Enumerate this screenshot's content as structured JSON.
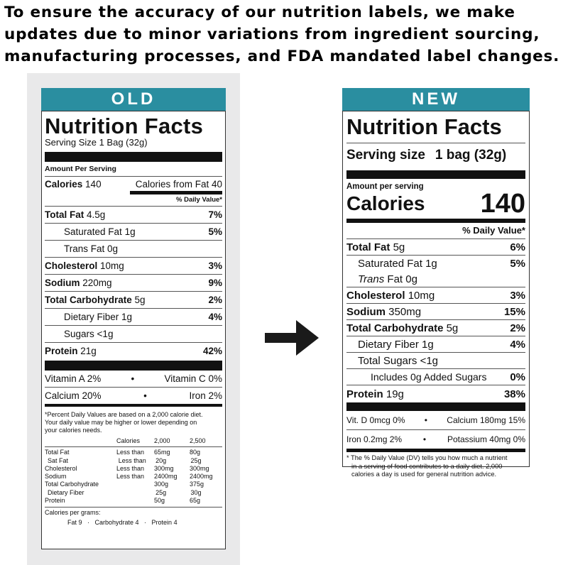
{
  "header": {
    "line1": "To ensure the accuracy of our nutrition labels, we make",
    "line2": "updates due to minor variations from ingredient sourcing,",
    "line3": "manufacturing processes, and FDA mandated label changes."
  },
  "old": {
    "banner": "OLD",
    "title": "Nutrition Facts",
    "serving": "Serving Size 1 Bag (32g)",
    "amount_per_serving": "Amount Per Serving",
    "calories_label": "Calories",
    "calories_value": "140",
    "calories_fat": "Calories from Fat 40",
    "dv_header": "% Daily Value*",
    "rows": [
      {
        "label": "Total Fat",
        "amount": "4.5g",
        "dv": "7%",
        "bold": true,
        "indent": false
      },
      {
        "label": "Saturated Fat",
        "amount": "1g",
        "dv": "5%",
        "bold": false,
        "indent": true
      },
      {
        "label": "Trans Fat",
        "amount": "0g",
        "dv": "",
        "bold": false,
        "indent": true
      },
      {
        "label": "Cholesterol",
        "amount": "10mg",
        "dv": "3%",
        "bold": true,
        "indent": false
      },
      {
        "label": "Sodium",
        "amount": "220mg",
        "dv": "9%",
        "bold": true,
        "indent": false
      },
      {
        "label": "Total Carbohydrate",
        "amount": "5g",
        "dv": "2%",
        "bold": true,
        "indent": false
      },
      {
        "label": "Dietary Fiber",
        "amount": "1g",
        "dv": "4%",
        "bold": false,
        "indent": true
      },
      {
        "label": "Sugars",
        "amount": "<1g",
        "dv": "",
        "bold": false,
        "indent": true
      }
    ],
    "protein_label": "Protein",
    "protein_amount": "21g",
    "protein_dv": "42%",
    "vit_a": "Vitamin A 2%",
    "vit_c": "Vitamin C 0%",
    "calcium": "Calcium 20%",
    "iron": "Iron 2%",
    "bullet": "•",
    "footnote_1": "*Percent Daily Values are based on a 2,000 calorie diet.",
    "footnote_2": "Your daily value may be higher or lower depending on",
    "footnote_3": "your calories needs.",
    "table_head": [
      "",
      "Calories",
      "2,000",
      "2,500"
    ],
    "table_rows": [
      [
        "Total Fat",
        "Less than",
        "65mg",
        "80g"
      ],
      [
        "Sat Fat",
        "Less than",
        "20g",
        "25g"
      ],
      [
        "Cholesterol",
        "Less than",
        "300mg",
        "300mg"
      ],
      [
        "Sodium",
        "Less than",
        "2400mg",
        "2400mg"
      ],
      [
        "Total Carbohydrate",
        "",
        "300g",
        "375g"
      ],
      [
        "Dietary Fiber",
        "",
        "25g",
        "30g"
      ],
      [
        "Protein",
        "",
        "50g",
        "65g"
      ]
    ],
    "cal_per_gram": "Calories per grams:",
    "cal_per_gram_values": "Fat 9   ·   Carbohydrate 4   ·   Protein 4"
  },
  "new": {
    "banner": "NEW",
    "title": "Nutrition Facts",
    "serving_label": "Serving size",
    "serving_value": "1 bag (32g)",
    "amount_per_serving": "Amount per serving",
    "calories_label": "Calories",
    "calories_value": "140",
    "dv_header": "% Daily Value*",
    "rows": [
      {
        "label": "Total Fat",
        "amount": "5g",
        "dv": "6%"
      },
      {
        "label": "Saturated Fat",
        "amount": "1g",
        "dv": "5%"
      },
      {
        "label": "Trans",
        "amount": "Fat 0g",
        "dv": ""
      },
      {
        "label": "Cholesterol",
        "amount": "10mg",
        "dv": "3%"
      },
      {
        "label": "Sodium",
        "amount": "350mg",
        "dv": "15%"
      },
      {
        "label": "Total Carbohydrate",
        "amount": "5g",
        "dv": "2%"
      },
      {
        "label": "Dietary Fiber",
        "amount": "1g",
        "dv": "4%"
      },
      {
        "label": "Total Sugars",
        "amount": "<1g",
        "dv": ""
      },
      {
        "label": "Includes 0g Added Sugars",
        "amount": "",
        "dv": "0%"
      }
    ],
    "protein_label": "Protein",
    "protein_amount": "19g",
    "protein_dv": "38%",
    "vit_d": "Vit. D 0mcg 0%",
    "calcium": "Calcium 180mg 15%",
    "iron": "Iron 0.2mg 2%",
    "potassium": "Potassium 40mg 0%",
    "bullet": "•",
    "footnote_1": "* The % Daily Value (DV) tells you how much a nutrient",
    "footnote_2": "in a serving of food contributes to a daily diet. 2,000",
    "footnote_3": "calories a day is used for general nutrition advice."
  }
}
